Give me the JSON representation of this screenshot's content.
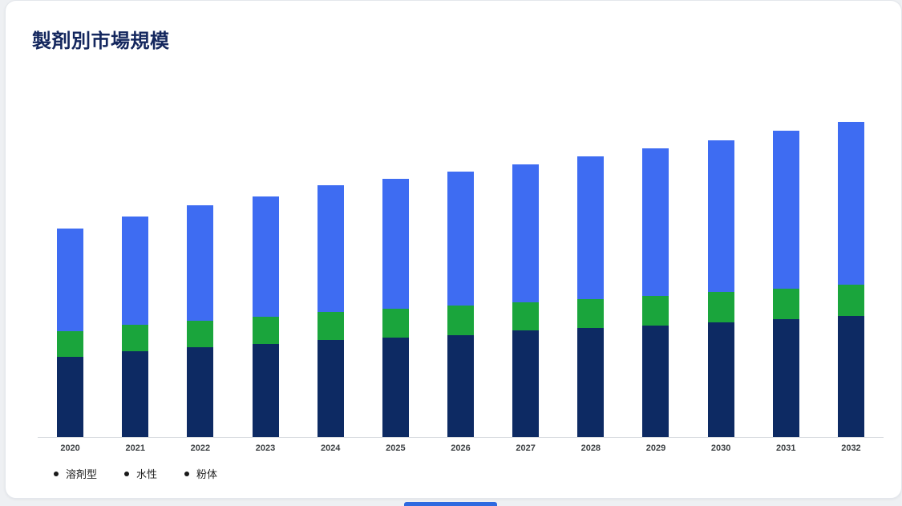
{
  "page": {
    "title": "製剤別市場規模"
  },
  "chart_data": {
    "type": "bar",
    "stacked": true,
    "title": "製剤別市場規模",
    "xlabel": "",
    "ylabel": "",
    "ylim": [
      0,
      400
    ],
    "grid": false,
    "legend_position": "bottom-left",
    "value_note": "no y-axis shown; values are relative units estimated from bar heights",
    "categories": [
      "2020",
      "2021",
      "2022",
      "2023",
      "2024",
      "2025",
      "2026",
      "2027",
      "2028",
      "2029",
      "2030",
      "2031",
      "2032"
    ],
    "series": [
      {
        "name": "溶剤型",
        "color": "#0d2a63",
        "values": [
          100,
          107,
          112,
          116,
          121,
          124,
          127,
          133,
          136,
          139,
          143,
          147,
          151
        ]
      },
      {
        "name": "水性",
        "color": "#1aa53c",
        "values": [
          32,
          33,
          33,
          34,
          35,
          36,
          37,
          35,
          36,
          37,
          38,
          38,
          39
        ]
      },
      {
        "name": "粉体",
        "color": "#3e6cf2",
        "values": [
          128,
          135,
          144,
          150,
          158,
          162,
          167,
          172,
          178,
          184,
          189,
          197,
          203
        ]
      }
    ]
  },
  "colors": {
    "title": "#14275e",
    "axis_line": "#d8dbe0",
    "xlabel_text": "#3c4043",
    "legend_text": "#1f1f1f",
    "card_background": "#ffffff",
    "page_background": "#eef0f3",
    "bottom_button": "#2e6ae0"
  }
}
